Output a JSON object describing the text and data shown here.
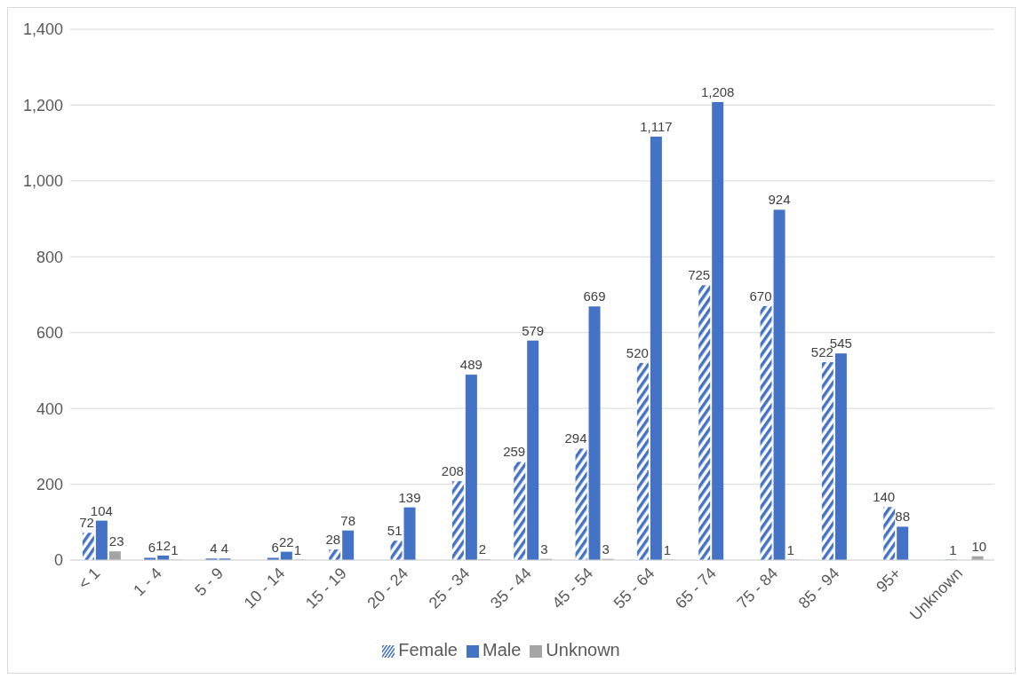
{
  "chart_data": {
    "type": "bar",
    "categories": [
      "< 1",
      "1 - 4",
      "5 - 9",
      "10 - 14",
      "15 - 19",
      "20 - 24",
      "25 - 34",
      "35 - 44",
      "45 - 54",
      "55 - 64",
      "65 - 74",
      "75 - 84",
      "85 - 94",
      "95+",
      "Unknown"
    ],
    "series": [
      {
        "name": "Female",
        "color": "#4472c4",
        "values": [
          72,
          6,
          4,
          6,
          28,
          51,
          208,
          259,
          294,
          520,
          725,
          670,
          522,
          140,
          1
        ],
        "value_labels": [
          "72",
          "6",
          "4",
          "6",
          "28",
          "51",
          "208",
          "259",
          "294",
          "520",
          "725",
          "670",
          "522",
          "140",
          "1"
        ]
      },
      {
        "name": "Male",
        "color": "#4472c4",
        "values": [
          104,
          12,
          4,
          22,
          78,
          139,
          489,
          579,
          669,
          1117,
          1208,
          924,
          545,
          88,
          null
        ],
        "value_labels": [
          "104",
          "12",
          "4",
          "22",
          "78",
          "139",
          "489",
          "579",
          "669",
          "1,117",
          "1,208",
          "924",
          "545",
          "88",
          null
        ]
      },
      {
        "name": "Unknown",
        "color": "#a5a5a5",
        "values": [
          23,
          1,
          null,
          1,
          null,
          null,
          2,
          3,
          3,
          1,
          null,
          1,
          null,
          null,
          10
        ],
        "value_labels": [
          "23",
          "1",
          null,
          "1",
          null,
          null,
          "2",
          "3",
          "3",
          "1",
          null,
          "1",
          null,
          null,
          "10"
        ]
      }
    ],
    "ylim": [
      0,
      1400
    ],
    "yticks": [
      0,
      200,
      400,
      600,
      800,
      {
        "value": 1000,
        "label": "1,000"
      },
      {
        "value": 1200,
        "label": "1,200"
      },
      {
        "value": 1400,
        "label": "1,400"
      }
    ],
    "grid": "y",
    "legend": "bottom"
  }
}
